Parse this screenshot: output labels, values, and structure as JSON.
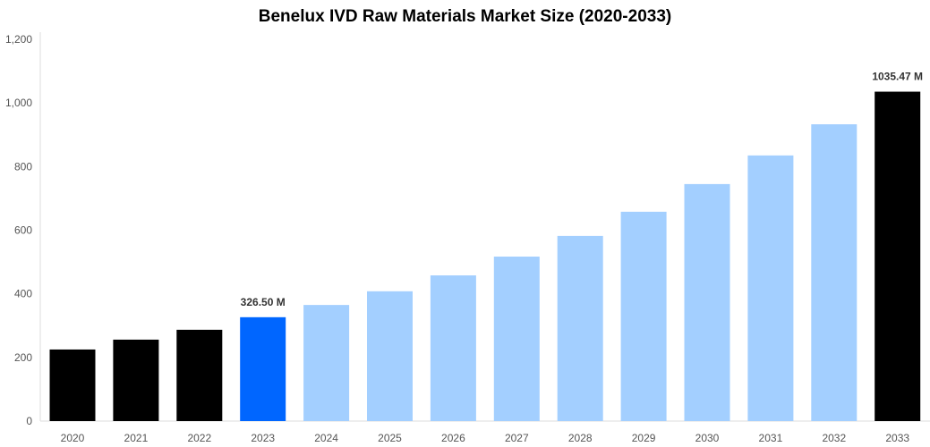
{
  "chart_data": {
    "type": "bar",
    "title": "Benelux IVD Raw Materials Market Size (2020-2033)",
    "xlabel": "",
    "ylabel": "",
    "ylim": [
      0,
      1200
    ],
    "yticks": [
      0,
      200,
      400,
      600,
      800,
      1000,
      1200
    ],
    "ytick_labels": [
      "0",
      "200",
      "400",
      "600",
      "800",
      "1,000",
      "1,200"
    ],
    "grid": false,
    "categories": [
      "2020",
      "2021",
      "2022",
      "2023",
      "2024",
      "2025",
      "2026",
      "2027",
      "2028",
      "2029",
      "2030",
      "2031",
      "2032",
      "2033"
    ],
    "values": [
      225,
      256,
      287,
      326.5,
      365,
      408,
      458,
      517,
      582,
      658,
      745,
      835,
      933,
      1035.47
    ],
    "bar_colors": [
      "#000000",
      "#000000",
      "#000000",
      "#0066ff",
      "#a3cfff",
      "#a3cfff",
      "#a3cfff",
      "#a3cfff",
      "#a3cfff",
      "#a3cfff",
      "#a3cfff",
      "#a3cfff",
      "#a3cfff",
      "#000000"
    ],
    "data_labels": {
      "2023": "326.50 M",
      "2033": "1035.47 M"
    }
  }
}
